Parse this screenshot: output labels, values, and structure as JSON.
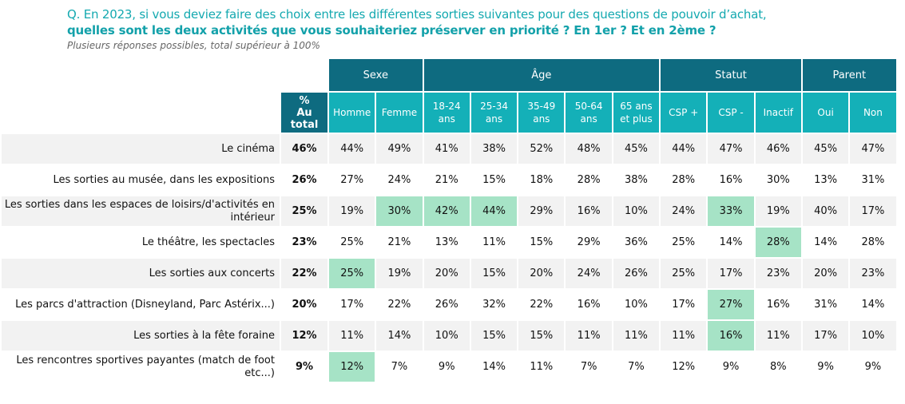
{
  "question_line1": "Q. En 2023, si vous deviez faire des choix entre les différentes sorties suivantes pour des questions de pouvoir d’achat,",
  "question_line2": "quelles sont les deux activités que vous souhaiteriez préserver en priorité ? En 1er ? Et en 2ème ?",
  "note": "Plusieurs réponses possibles, total supérieur à 100%",
  "groups": [
    "Sexe",
    "Âge",
    "Statut",
    "Parent"
  ],
  "total_header": [
    "%",
    "Au total"
  ],
  "columns": [
    [
      "Homme"
    ],
    [
      "Femme"
    ],
    [
      "18-24",
      "ans"
    ],
    [
      "25-34",
      "ans"
    ],
    [
      "35-49",
      "ans"
    ],
    [
      "50-64",
      "ans"
    ],
    [
      "65 ans",
      "et plus"
    ],
    [
      "CSP +"
    ],
    [
      "CSP -"
    ],
    [
      "Inactif"
    ],
    [
      "Oui"
    ],
    [
      "Non"
    ]
  ],
  "colors": {
    "dark": "#0e6b80",
    "light": "#14b0b8",
    "highlight": "#a6e3c6"
  },
  "rows": [
    {
      "label": "Le cinéma",
      "total": "46%",
      "values": [
        "44%",
        "49%",
        "41%",
        "38%",
        "52%",
        "48%",
        "45%",
        "44%",
        "47%",
        "46%",
        "45%",
        "47%"
      ],
      "highlight": []
    },
    {
      "label": "Les sorties au musée, dans les expositions",
      "total": "26%",
      "values": [
        "27%",
        "24%",
        "21%",
        "15%",
        "18%",
        "28%",
        "38%",
        "28%",
        "16%",
        "30%",
        "13%",
        "31%"
      ],
      "highlight": []
    },
    {
      "label": "Les sorties dans les espaces de loisirs/d'activités en intérieur",
      "total": "25%",
      "values": [
        "19%",
        "30%",
        "42%",
        "44%",
        "29%",
        "16%",
        "10%",
        "24%",
        "33%",
        "19%",
        "40%",
        "17%"
      ],
      "highlight": [
        1,
        2,
        3,
        8
      ]
    },
    {
      "label": "Le théâtre, les spectacles",
      "total": "23%",
      "values": [
        "25%",
        "21%",
        "13%",
        "11%",
        "15%",
        "29%",
        "36%",
        "25%",
        "14%",
        "28%",
        "14%",
        "28%"
      ],
      "highlight": [
        9
      ]
    },
    {
      "label": "Les sorties aux concerts",
      "total": "22%",
      "values": [
        "25%",
        "19%",
        "20%",
        "15%",
        "20%",
        "24%",
        "26%",
        "25%",
        "17%",
        "23%",
        "20%",
        "23%"
      ],
      "highlight": [
        0
      ]
    },
    {
      "label": "Les parcs d'attraction (Disneyland, Parc Astérix...)",
      "total": "20%",
      "values": [
        "17%",
        "22%",
        "26%",
        "32%",
        "22%",
        "16%",
        "10%",
        "17%",
        "27%",
        "16%",
        "31%",
        "14%"
      ],
      "highlight": [
        8
      ]
    },
    {
      "label": "Les sorties à la fête foraine",
      "total": "12%",
      "values": [
        "11%",
        "14%",
        "10%",
        "15%",
        "15%",
        "11%",
        "11%",
        "11%",
        "16%",
        "11%",
        "17%",
        "10%"
      ],
      "highlight": [
        8
      ]
    },
    {
      "label": "Les rencontres sportives payantes (match de foot etc...)",
      "total": "9%",
      "values": [
        "12%",
        "7%",
        "9%",
        "14%",
        "11%",
        "7%",
        "7%",
        "12%",
        "9%",
        "8%",
        "9%",
        "9%"
      ],
      "highlight": [
        0
      ]
    }
  ]
}
